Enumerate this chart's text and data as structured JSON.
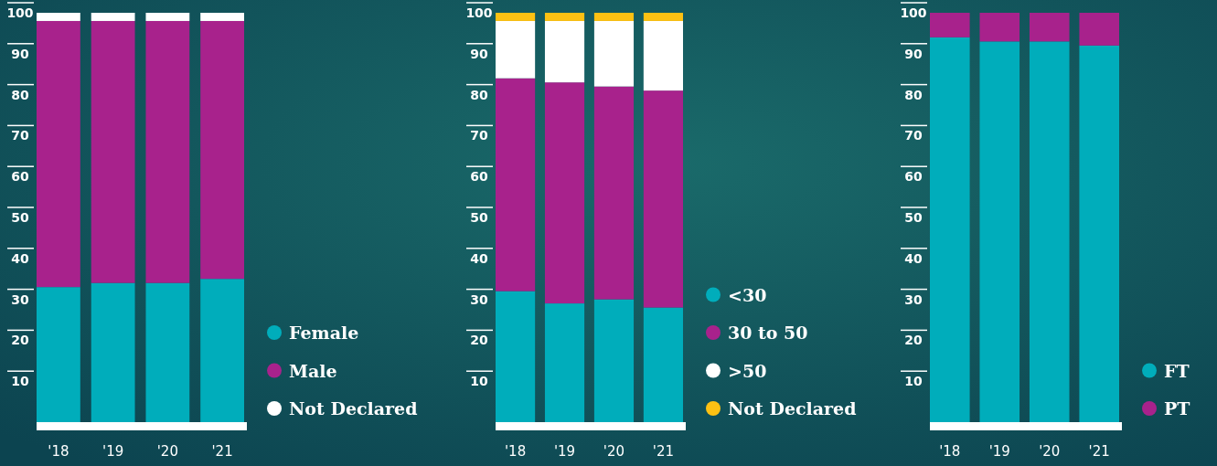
{
  "chart_data": [
    {
      "type": "bar",
      "stacked": true,
      "categories": [
        "'18",
        "'19",
        "'20",
        "'21"
      ],
      "ylim": [
        0,
        100
      ],
      "yticks": [
        10,
        20,
        30,
        40,
        50,
        60,
        70,
        80,
        90,
        100
      ],
      "legend": "right",
      "series": [
        {
          "name": "Female",
          "color": "#00adbb",
          "values": [
            33,
            34,
            34,
            35
          ]
        },
        {
          "name": "Male",
          "color": "#a8228c",
          "values": [
            65,
            64,
            64,
            63
          ]
        },
        {
          "name": "Not Declared",
          "color": "#ffffff",
          "values": [
            2,
            2,
            2,
            2
          ]
        }
      ]
    },
    {
      "type": "bar",
      "stacked": true,
      "categories": [
        "'18",
        "'19",
        "'20",
        "'21"
      ],
      "ylim": [
        0,
        100
      ],
      "yticks": [
        10,
        20,
        30,
        40,
        50,
        60,
        70,
        80,
        90,
        100
      ],
      "legend": "right",
      "series": [
        {
          "name": "<30",
          "color": "#00adbb",
          "values": [
            32,
            29,
            30,
            28
          ]
        },
        {
          "name": "30 to 50",
          "color": "#a8228c",
          "values": [
            52,
            54,
            52,
            53
          ]
        },
        {
          "name": ">50",
          "color": "#ffffff",
          "values": [
            14,
            15,
            16,
            17
          ]
        },
        {
          "name": "Not Declared",
          "color": "#fdc113",
          "values": [
            2,
            2,
            2,
            2
          ]
        }
      ]
    },
    {
      "type": "bar",
      "stacked": true,
      "categories": [
        "'18",
        "'19",
        "'20",
        "'21"
      ],
      "ylim": [
        0,
        100
      ],
      "yticks": [
        10,
        20,
        30,
        40,
        50,
        60,
        70,
        80,
        90,
        100
      ],
      "legend": "right",
      "series": [
        {
          "name": "FT",
          "color": "#00adbb",
          "values": [
            94,
            93,
            93,
            92
          ]
        },
        {
          "name": "PT",
          "color": "#a8228c",
          "values": [
            6,
            7,
            7,
            8
          ]
        }
      ]
    }
  ]
}
